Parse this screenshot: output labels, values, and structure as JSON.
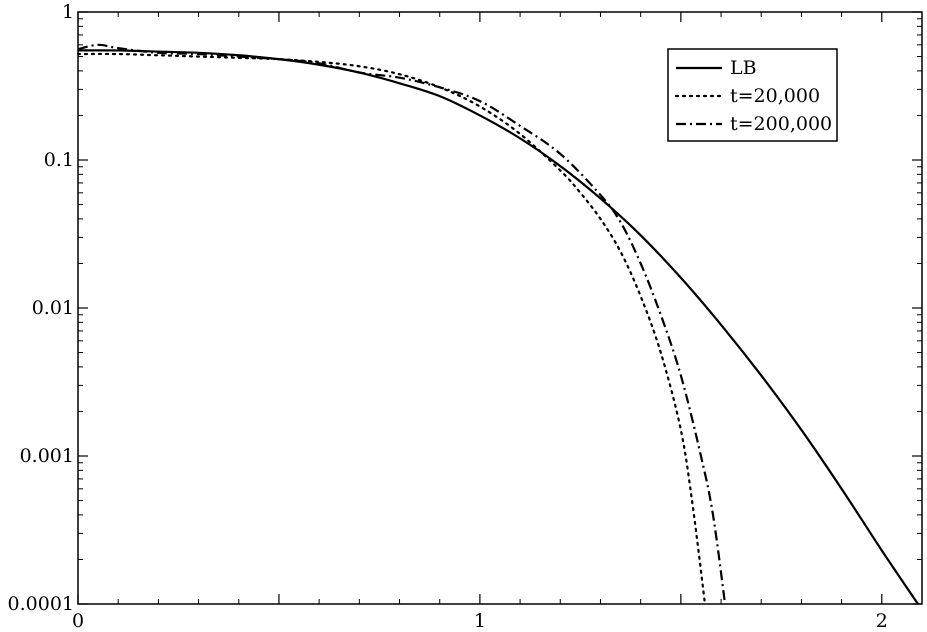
{
  "chart_data": {
    "type": "line",
    "title": "",
    "xlabel": "",
    "ylabel": "",
    "xlim": [
      0,
      2.1
    ],
    "ylim": [
      0.0001,
      1
    ],
    "yscale": "log",
    "grid": false,
    "legend_position": "top-right",
    "x_ticks": [
      {
        "value": 0,
        "label": "0"
      },
      {
        "value": 1,
        "label": "1"
      },
      {
        "value": 2,
        "label": "2"
      }
    ],
    "y_ticks": [
      {
        "value": 1,
        "label": "1"
      },
      {
        "value": 0.1,
        "label": "0.1"
      },
      {
        "value": 0.01,
        "label": "0.01"
      },
      {
        "value": 0.001,
        "label": "0.001"
      },
      {
        "value": 0.0001,
        "label": "0.0001"
      }
    ],
    "series": [
      {
        "name": "LB",
        "style": "solid",
        "x": [
          0,
          0.1,
          0.2,
          0.3,
          0.4,
          0.5,
          0.6,
          0.7,
          0.8,
          0.9,
          1.0,
          1.1,
          1.2,
          1.3,
          1.4,
          1.5,
          1.6,
          1.7,
          1.8,
          1.9,
          2.0,
          2.09
        ],
        "y": [
          0.55,
          0.55,
          0.54,
          0.53,
          0.51,
          0.48,
          0.44,
          0.39,
          0.33,
          0.27,
          0.2,
          0.14,
          0.091,
          0.055,
          0.031,
          0.016,
          0.0077,
          0.0035,
          0.0015,
          0.0006,
          0.00023,
          0.0001
        ]
      },
      {
        "name": "t=20,000",
        "style": "dotted",
        "x": [
          0,
          0.1,
          0.2,
          0.3,
          0.4,
          0.5,
          0.6,
          0.7,
          0.8,
          0.9,
          1.0,
          1.1,
          1.2,
          1.25,
          1.3,
          1.35,
          1.4,
          1.45,
          1.5,
          1.53,
          1.56
        ],
        "y": [
          0.52,
          0.52,
          0.51,
          0.5,
          0.49,
          0.48,
          0.46,
          0.43,
          0.38,
          0.31,
          0.23,
          0.15,
          0.085,
          0.06,
          0.04,
          0.024,
          0.012,
          0.005,
          0.0015,
          0.00045,
          0.0001
        ]
      },
      {
        "name": "t=200,000",
        "style": "dashdot",
        "x": [
          0,
          0.05,
          0.1,
          0.2,
          0.3,
          0.4,
          0.5,
          0.6,
          0.7,
          0.8,
          0.9,
          1.0,
          1.1,
          1.2,
          1.3,
          1.35,
          1.4,
          1.45,
          1.5,
          1.55,
          1.58,
          1.61
        ],
        "y": [
          0.56,
          0.6,
          0.57,
          0.53,
          0.52,
          0.5,
          0.48,
          0.45,
          0.39,
          0.36,
          0.31,
          0.25,
          0.17,
          0.11,
          0.058,
          0.038,
          0.02,
          0.009,
          0.0035,
          0.001,
          0.0004,
          0.0001
        ]
      }
    ]
  }
}
